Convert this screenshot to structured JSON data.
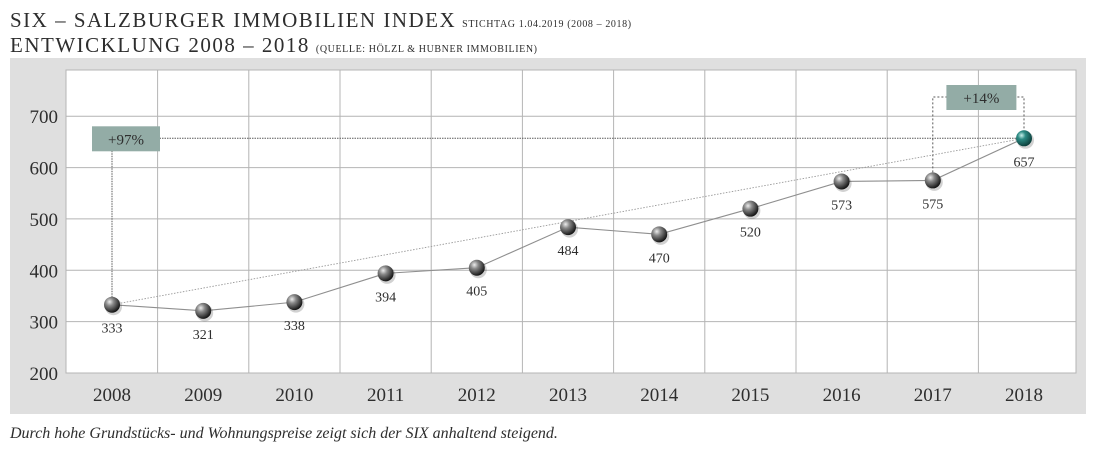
{
  "header": {
    "title_main": "SIX – SALZBURGER IMMOBILIEN INDEX",
    "title_note": "STICHTAG 1.04.2019 (2008 – 2018)",
    "subtitle_main": "ENTWICKLUNG 2008 – 2018",
    "subtitle_note": "(QUELLE: HÖLZL & HUBNER IMMOBILIEN)"
  },
  "caption": "Durch hohe Grundstücks- und Wohnungspreise zeigt sich der SIX anhaltend steigend.",
  "chart_data": {
    "type": "line",
    "title": "SIX – SALZBURGER IMMOBILIEN INDEX",
    "x": [
      "2008",
      "2009",
      "2010",
      "2011",
      "2012",
      "2013",
      "2014",
      "2015",
      "2016",
      "2017",
      "2018"
    ],
    "series": [
      {
        "values": [
          333,
          321,
          338,
          394,
          405,
          484,
          470,
          520,
          573,
          575,
          657
        ]
      }
    ],
    "data_labels": [
      "333",
      "321",
      "338",
      "394",
      "405",
      "484",
      "470",
      "520",
      "573",
      "575",
      "657"
    ],
    "yticks": [
      200,
      300,
      400,
      500,
      600,
      700
    ],
    "ylim": [
      200,
      790
    ],
    "grid": true,
    "trend_line": {
      "from": "2008",
      "to": "2018"
    },
    "annotations": [
      {
        "text": "+97%",
        "from": "2008",
        "to": "2018"
      },
      {
        "text": "+14%",
        "from": "2017",
        "to": "2018"
      }
    ],
    "colors": {
      "panel": "#dfdfdf",
      "plot_bg": "#ffffff",
      "grid": "#b4b4b4",
      "line": "#8f8f8f",
      "marker": "#3a3a3a",
      "highlight_marker": "#1e6d69",
      "annotation_box": "#93aca6"
    }
  }
}
